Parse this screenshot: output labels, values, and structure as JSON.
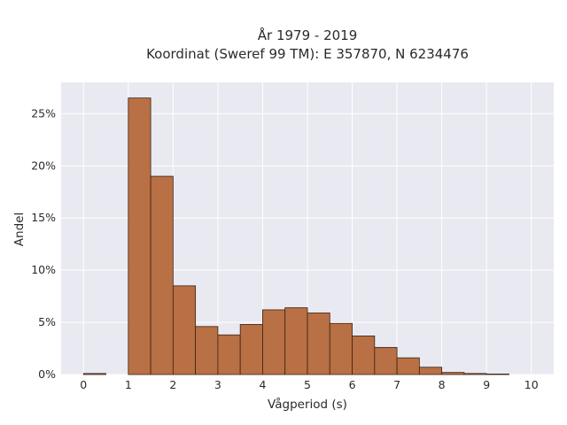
{
  "chart_data": {
    "type": "bar",
    "title_line1": "År 1979 - 2019",
    "title_line2": "Koordinat (Sweref 99 TM): E 357870, N 6234476",
    "xlabel": "Vågperiod (s)",
    "ylabel": "Andel",
    "xlim": [
      -0.5,
      10.5
    ],
    "ylim": [
      0,
      0.28
    ],
    "x_ticks": [
      0,
      1,
      2,
      3,
      4,
      5,
      6,
      7,
      8,
      9,
      10
    ],
    "y_ticks": [
      0,
      0.05,
      0.1,
      0.15,
      0.2,
      0.25
    ],
    "y_tick_labels": [
      "0%",
      "5%",
      "10%",
      "15%",
      "20%",
      "25%"
    ],
    "bin_width": 0.5,
    "bin_starts": [
      0,
      0.5,
      1,
      1.5,
      2,
      2.5,
      3,
      3.5,
      4,
      4.5,
      5,
      5.5,
      6,
      6.5,
      7,
      7.5,
      8,
      8.5,
      9,
      9.5
    ],
    "values": [
      0.001,
      0.0,
      0.265,
      0.19,
      0.085,
      0.046,
      0.038,
      0.048,
      0.062,
      0.064,
      0.059,
      0.049,
      0.037,
      0.026,
      0.016,
      0.007,
      0.002,
      0.001,
      0.0005,
      0.0
    ],
    "grid": true,
    "colors": {
      "bar_fill": "#b87044",
      "bar_edge": "#3a2416",
      "plot_bg": "#e9e9f1",
      "grid": "#ffffff"
    }
  }
}
